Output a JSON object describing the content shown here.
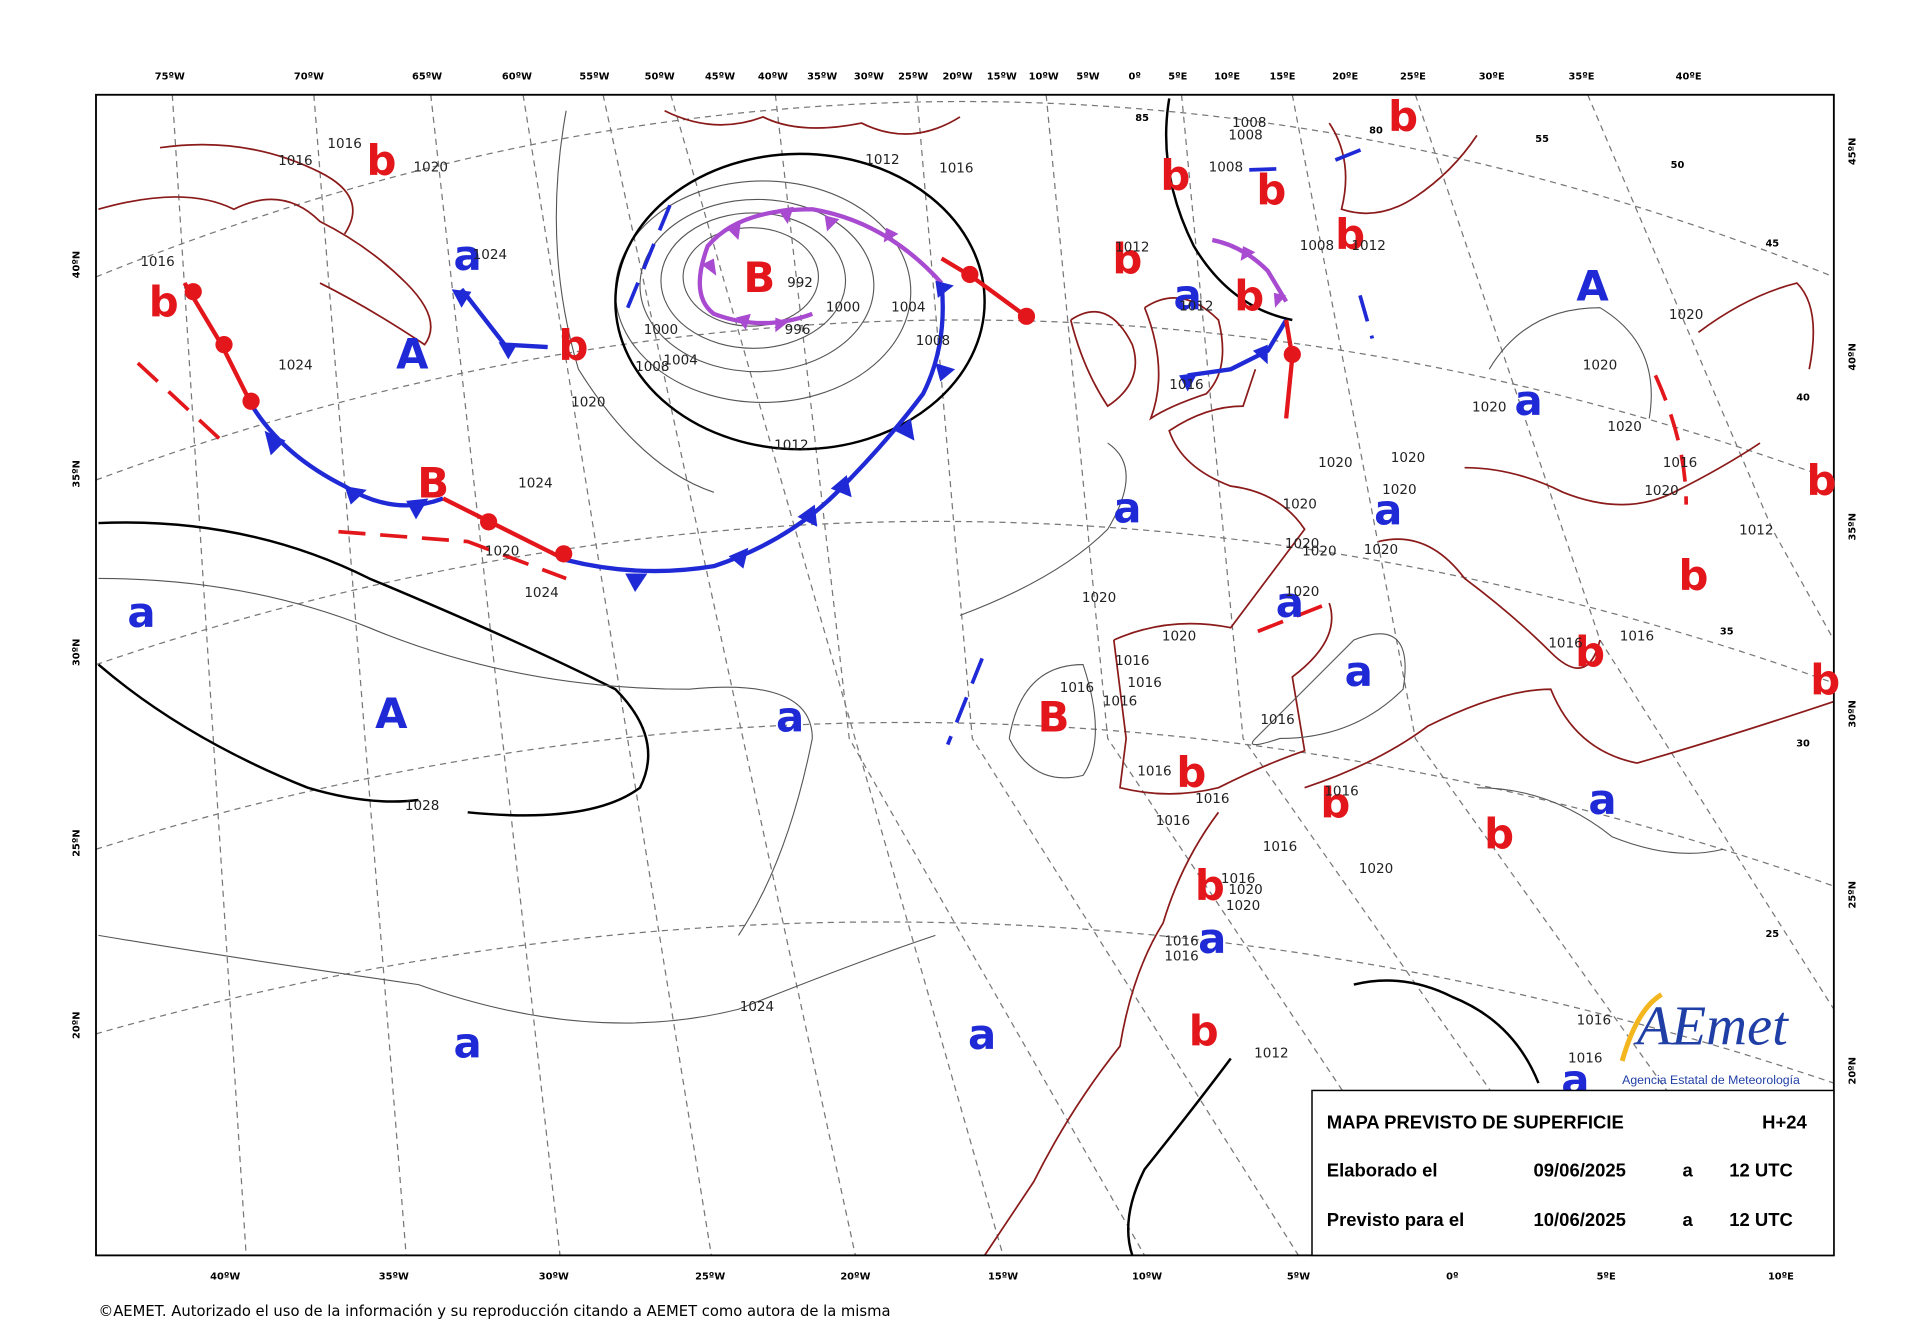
{
  "top_longitude_labels": [
    "75ºW",
    "70ºW",
    "65ºW",
    "60ºW",
    "55ºW",
    "50ºW",
    "45ºW",
    "40ºW",
    "35ºW",
    "30ºW",
    "25ºW",
    "20ºW",
    "15ºW",
    "10ºW",
    "5ºW",
    "0º",
    "5ºE",
    "10ºE",
    "15ºE",
    "20ºE",
    "25ºE",
    "30ºE",
    "35ºE",
    "40ºE"
  ],
  "bottom_longitude_labels": [
    "40ºW",
    "35ºW",
    "30ºW",
    "25ºW",
    "20ºW",
    "15ºW",
    "10ºW",
    "5ºW",
    "0º",
    "5ºE",
    "10ºE"
  ],
  "left_latitude_labels": [
    "40ºN",
    "35ºN",
    "30ºN",
    "25ºN",
    "20ºN"
  ],
  "right_latitude_labels": [
    "45ºN",
    "40ºN",
    "35ºN",
    "30ºN",
    "25ºN",
    "20ºN"
  ],
  "grid_labels": [
    "85",
    "80",
    "55",
    "50",
    "45",
    "40",
    "35",
    "30",
    "25"
  ],
  "low_labels": [
    "b",
    "b",
    "b",
    "B",
    "B",
    "b",
    "b",
    "b",
    "b",
    "b",
    "b",
    "B",
    "b",
    "b",
    "b",
    "b",
    "b",
    "b",
    "b",
    "b",
    "b"
  ],
  "high_labels": [
    "a",
    "A",
    "a",
    "A",
    "a",
    "a",
    "a",
    "a",
    "a",
    "A",
    "a",
    "a",
    "a",
    "a",
    "a",
    "a",
    "a"
  ],
  "isobar_labels": [
    "1016",
    "1016",
    "1020",
    "1016",
    "1024",
    "1024",
    "1020",
    "1024",
    "1020",
    "1024",
    "1028",
    "1012",
    "1016",
    "992",
    "1000",
    "1004",
    "1008",
    "1000",
    "1004",
    "1008",
    "996",
    "1012",
    "1020",
    "1020",
    "1016",
    "1016",
    "1016",
    "1016",
    "1016",
    "1016",
    "1016",
    "1020",
    "1020",
    "1020",
    "1020",
    "1020",
    "1020",
    "1020",
    "1020",
    "1016",
    "1016",
    "1016",
    "1020",
    "1016",
    "1020",
    "1020",
    "1016",
    "1016",
    "1024",
    "1012",
    "1016",
    "1016",
    "1016",
    "1016",
    "1020",
    "1020",
    "1020",
    "1020",
    "1016",
    "1020",
    "1012",
    "1012",
    "1012",
    "1008",
    "1008",
    "1008",
    "1008",
    "1012",
    "1016"
  ],
  "info_box": {
    "title": "MAPA PREVISTO DE SUPERFICIE",
    "lead_time": "H+24",
    "rows": [
      [
        "Elaborado el",
        "09/06/2025",
        "a",
        "12 UTC"
      ],
      [
        "Previsto para el",
        "10/06/2025",
        "a",
        "12 UTC"
      ]
    ]
  },
  "logo": {
    "name": "AEmet",
    "subtitle": "Agencia Estatal de Meteorología"
  },
  "copyright": "©AEMET. Autorizado el uso de la información y su reproducción citando a AEMET como autora de la misma"
}
